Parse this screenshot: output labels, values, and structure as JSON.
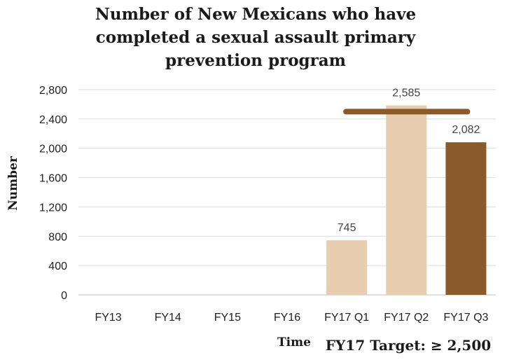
{
  "chart_data": {
    "type": "bar",
    "title_lines": [
      "Number of New Mexicans who have",
      "completed a sexual assault primary",
      "prevention program"
    ],
    "xlabel": "Time",
    "ylabel": "Number",
    "categories": [
      "FY13",
      "FY14",
      "FY15",
      "FY16",
      "FY17 Q1",
      "FY17 Q2",
      "FY17 Q3"
    ],
    "values": [
      null,
      null,
      null,
      null,
      745,
      2585,
      2082
    ],
    "data_labels": [
      "",
      "",
      "",
      "",
      "745",
      "2,585",
      "2,082"
    ],
    "bar_colors": [
      "#e8cdb0",
      "#e8cdb0",
      "#e8cdb0",
      "#e8cdb0",
      "#e8cdb0",
      "#e8cdb0",
      "#8b5a2b"
    ],
    "yticks": [
      0,
      400,
      800,
      1200,
      1600,
      2000,
      2400,
      2800
    ],
    "ytick_labels": [
      "0",
      "400",
      "800",
      "1,200",
      "1,600",
      "2,000",
      "2,400",
      "2,800"
    ],
    "ylim": [
      0,
      2800
    ],
    "grid": true,
    "target": {
      "value": 2500,
      "label": "FY17 Target: ≥ 2,500",
      "color": "#8b5a2b",
      "span": [
        "FY17 Q1",
        "FY17 Q3"
      ]
    }
  }
}
